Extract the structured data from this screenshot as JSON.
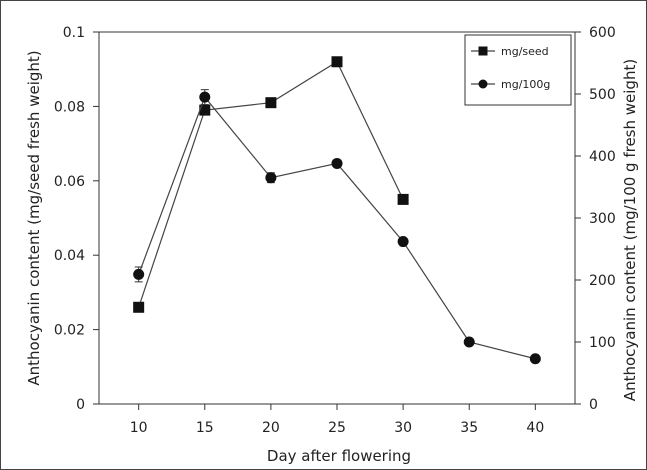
{
  "chart_data": {
    "type": "line",
    "title": "",
    "xlabel": "Day after flowering",
    "ylabel_left": "Anthocyanin content (mg/seed fresh weight)",
    "ylabel_right": "Anthocyanin content (mg/100 g fresh weight)",
    "xlim": [
      7,
      43
    ],
    "ylim_left": [
      0,
      0.1
    ],
    "ylim_right": [
      0,
      600
    ],
    "x_ticks": [
      "10",
      "15",
      "20",
      "25",
      "30",
      "35",
      "40"
    ],
    "y_left_ticks": [
      "0",
      "0.02",
      "0.04",
      "0.06",
      "0.08",
      "0.1"
    ],
    "y_right_ticks": [
      "0",
      "100",
      "200",
      "300",
      "400",
      "500",
      "600"
    ],
    "legend_position": "top-right",
    "grid": false,
    "series": [
      {
        "name": "mg/seed",
        "axis": "left",
        "marker": "square",
        "x": [
          10,
          15,
          20,
          25,
          30
        ],
        "y": [
          0.026,
          0.079,
          0.081,
          0.092,
          0.055
        ],
        "err": [
          0,
          0,
          0,
          0,
          0
        ]
      },
      {
        "name": "mg/100g",
        "axis": "right",
        "marker": "circle",
        "x": [
          10,
          15,
          20,
          25,
          30,
          35,
          40
        ],
        "y": [
          209,
          495,
          365,
          388,
          262,
          100,
          73
        ],
        "err": [
          12,
          12,
          8,
          0,
          0,
          0,
          0
        ]
      }
    ]
  }
}
